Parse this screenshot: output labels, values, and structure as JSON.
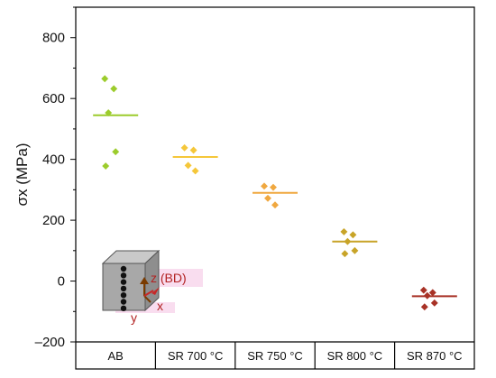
{
  "chart_data": {
    "type": "scatter",
    "ylabel": "σx (MPa)",
    "ylim": [
      -200,
      900
    ],
    "yticks": [
      -200,
      0,
      200,
      400,
      600,
      800
    ],
    "ytick_labels": [
      "–200",
      "0",
      "200",
      "400",
      "600",
      "800"
    ],
    "categories": [
      "AB",
      "SR 700 °C",
      "SR 750 °C",
      "SR 800 °C",
      "SR 870 °C"
    ],
    "series": [
      {
        "category": "AB",
        "color": "#9ccc2c",
        "points": [
          665,
          632,
          553,
          425,
          378
        ],
        "mean": 545
      },
      {
        "category": "SR 700 °C",
        "color": "#f5c73a",
        "points": [
          438,
          430,
          380,
          362
        ],
        "mean": 408
      },
      {
        "category": "SR 750 °C",
        "color": "#f0a840",
        "points": [
          312,
          308,
          272,
          250
        ],
        "mean": 290
      },
      {
        "category": "SR 800 °C",
        "color": "#c8a428",
        "points": [
          162,
          152,
          130,
          100,
          90
        ],
        "mean": 130
      },
      {
        "category": "SR 870 °C",
        "color": "#a83226",
        "points": [
          -30,
          -38,
          -48,
          -72,
          -85
        ],
        "mean": -50
      }
    ],
    "grid": false,
    "legend": "none"
  },
  "inset": {
    "z_label": "z (BD)",
    "x_label": "x",
    "y_label": "y",
    "box_color": "#a8a8a8",
    "dot_color": "#111111",
    "arrow_color": "#7a3b00",
    "label_color": "#b22222",
    "highlight_color": "#f6cfe8"
  }
}
